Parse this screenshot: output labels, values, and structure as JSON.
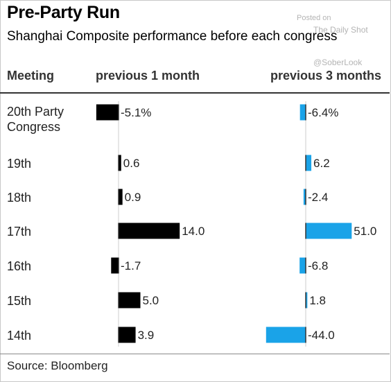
{
  "title": "Pre-Party Run",
  "subtitle": "Shanghai Composite performance before each congress",
  "watermark": {
    "posted_on": "Posted on",
    "site": "The Daily Shot",
    "handle": "@SoberLook"
  },
  "headers": {
    "meeting": "Meeting",
    "m1": "previous 1 month",
    "m3": "previous 3 months"
  },
  "source": "Source: Bloomberg",
  "colors": {
    "m1_bar": "#000000",
    "m3_bar": "#1aa3e8"
  },
  "chart_data": {
    "type": "bar",
    "categories": [
      "20th Party Congress",
      "19th",
      "18th",
      "17th",
      "16th",
      "15th",
      "14th"
    ],
    "series": [
      {
        "name": "previous 1 month",
        "values": [
          -5.1,
          0.6,
          0.9,
          14.0,
          -1.7,
          5.0,
          3.9
        ],
        "labels": [
          "-5.1%",
          "0.6",
          "0.9",
          "14.0",
          "-1.7",
          "5.0",
          "3.9"
        ]
      },
      {
        "name": "previous 3 months",
        "values": [
          -6.4,
          6.2,
          -2.4,
          51.0,
          -6.8,
          1.8,
          -44.0
        ],
        "labels": [
          "-6.4%",
          "6.2",
          "-2.4",
          "51.0",
          "-6.8",
          "1.8",
          "-44.0"
        ]
      }
    ]
  }
}
